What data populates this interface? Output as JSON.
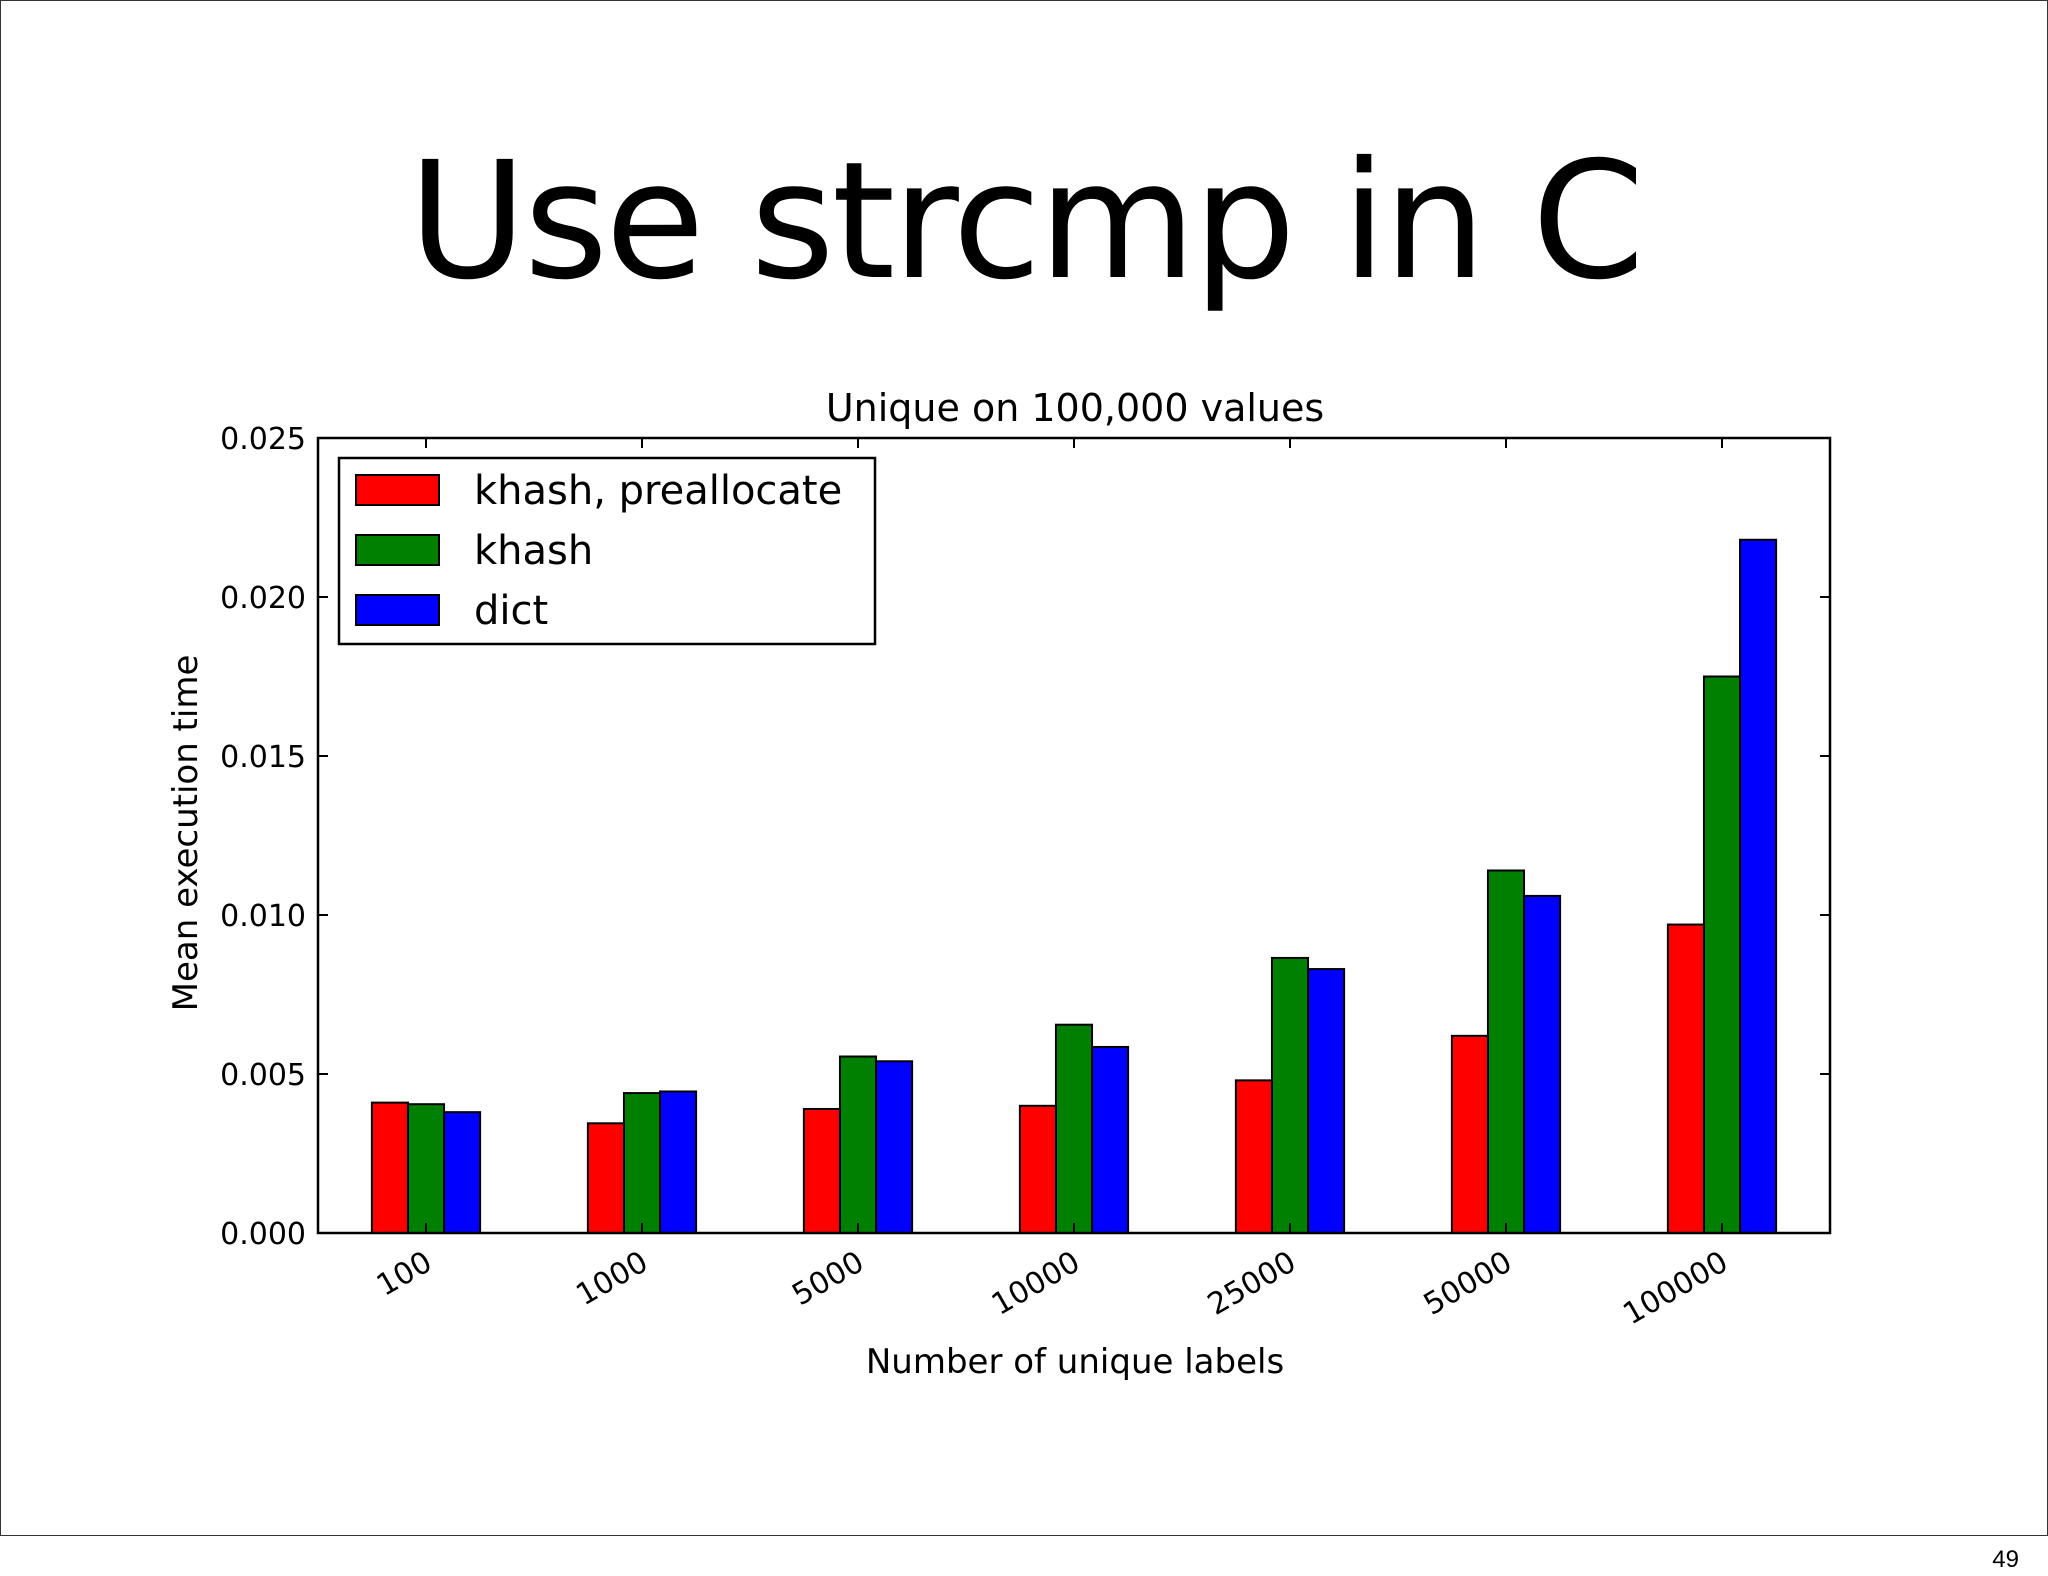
{
  "slide": {
    "title": "Use strcmp in C",
    "page_number": "49"
  },
  "chart_data": {
    "type": "bar",
    "title": "Unique on 100,000 values",
    "xlabel": "Number of unique labels",
    "ylabel": "Mean execution time",
    "categories": [
      "100",
      "1000",
      "5000",
      "10000",
      "25000",
      "50000",
      "100000"
    ],
    "series": [
      {
        "name": "khash, preallocate",
        "color": "#ff0000",
        "values": [
          0.0041,
          0.00345,
          0.0039,
          0.004,
          0.0048,
          0.0062,
          0.0097
        ]
      },
      {
        "name": "khash",
        "color": "#008000",
        "values": [
          0.00405,
          0.0044,
          0.00555,
          0.00655,
          0.00865,
          0.0114,
          0.0175
        ]
      },
      {
        "name": "dict",
        "color": "#0000ff",
        "values": [
          0.0038,
          0.00445,
          0.0054,
          0.00585,
          0.0083,
          0.0106,
          0.0218
        ]
      }
    ],
    "ylim": [
      0,
      0.025
    ],
    "yticks": [
      "0.000",
      "0.005",
      "0.010",
      "0.015",
      "0.020",
      "0.025"
    ],
    "grid": false,
    "legend_position": "top-left"
  }
}
